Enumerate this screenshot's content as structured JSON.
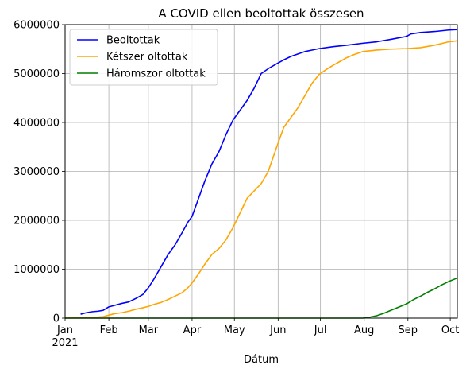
{
  "chart_data": {
    "type": "line",
    "title": "A COVID ellen beoltottak összesen",
    "xlabel": "Dátum",
    "ylabel": "",
    "xlim": [
      "2021-01-01",
      "2021-10-06"
    ],
    "ylim": [
      0,
      6000000
    ],
    "grid": true,
    "legend_position": "top-left",
    "x_tick_labels": [
      {
        "date": "2021-01-01",
        "label": "Jan",
        "sublabel": "2021"
      },
      {
        "date": "2021-02-01",
        "label": "Feb",
        "sublabel": ""
      },
      {
        "date": "2021-03-01",
        "label": "Mar",
        "sublabel": ""
      },
      {
        "date": "2021-04-01",
        "label": "Apr",
        "sublabel": ""
      },
      {
        "date": "2021-05-01",
        "label": "May",
        "sublabel": ""
      },
      {
        "date": "2021-06-01",
        "label": "Jun",
        "sublabel": ""
      },
      {
        "date": "2021-07-01",
        "label": "Jul",
        "sublabel": ""
      },
      {
        "date": "2021-08-01",
        "label": "Aug",
        "sublabel": ""
      },
      {
        "date": "2021-09-01",
        "label": "Sep",
        "sublabel": ""
      },
      {
        "date": "2021-10-01",
        "label": "Oct",
        "sublabel": ""
      }
    ],
    "y_ticks": [
      {
        "value": 0,
        "label": "0"
      },
      {
        "value": 1000000,
        "label": "1000000"
      },
      {
        "value": 2000000,
        "label": "2000000"
      },
      {
        "value": 3000000,
        "label": "3000000"
      },
      {
        "value": 4000000,
        "label": "4000000"
      },
      {
        "value": 5000000,
        "label": "5000000"
      },
      {
        "value": 6000000,
        "label": "6000000"
      }
    ],
    "series": [
      {
        "name": "Beoltottak",
        "color": "#0000ff",
        "points": [
          [
            "2021-01-12",
            80000
          ],
          [
            "2021-01-16",
            110000
          ],
          [
            "2021-01-20",
            130000
          ],
          [
            "2021-01-24",
            140000
          ],
          [
            "2021-01-28",
            160000
          ],
          [
            "2021-02-01",
            230000
          ],
          [
            "2021-02-05",
            260000
          ],
          [
            "2021-02-10",
            300000
          ],
          [
            "2021-02-15",
            330000
          ],
          [
            "2021-02-20",
            400000
          ],
          [
            "2021-02-25",
            480000
          ],
          [
            "2021-03-01",
            620000
          ],
          [
            "2021-03-05",
            800000
          ],
          [
            "2021-03-10",
            1050000
          ],
          [
            "2021-03-15",
            1300000
          ],
          [
            "2021-03-20",
            1500000
          ],
          [
            "2021-03-25",
            1750000
          ],
          [
            "2021-03-29",
            1960000
          ],
          [
            "2021-04-01",
            2080000
          ],
          [
            "2021-04-05",
            2400000
          ],
          [
            "2021-04-10",
            2800000
          ],
          [
            "2021-04-15",
            3150000
          ],
          [
            "2021-04-20",
            3400000
          ],
          [
            "2021-04-25",
            3750000
          ],
          [
            "2021-04-30",
            4050000
          ],
          [
            "2021-05-05",
            4250000
          ],
          [
            "2021-05-10",
            4450000
          ],
          [
            "2021-05-15",
            4700000
          ],
          [
            "2021-05-20",
            5000000
          ],
          [
            "2021-05-25",
            5100000
          ],
          [
            "2021-05-31",
            5200000
          ],
          [
            "2021-06-05",
            5280000
          ],
          [
            "2021-06-10",
            5350000
          ],
          [
            "2021-06-15",
            5400000
          ],
          [
            "2021-06-20",
            5450000
          ],
          [
            "2021-06-25",
            5480000
          ],
          [
            "2021-06-30",
            5510000
          ],
          [
            "2021-07-10",
            5550000
          ],
          [
            "2021-07-20",
            5580000
          ],
          [
            "2021-07-31",
            5620000
          ],
          [
            "2021-08-10",
            5650000
          ],
          [
            "2021-08-20",
            5700000
          ],
          [
            "2021-08-31",
            5760000
          ],
          [
            "2021-09-03",
            5810000
          ],
          [
            "2021-09-10",
            5840000
          ],
          [
            "2021-09-20",
            5860000
          ],
          [
            "2021-09-30",
            5890000
          ],
          [
            "2021-10-06",
            5900000
          ]
        ]
      },
      {
        "name": "Kétszer oltottak",
        "color": "#ffa500",
        "points": [
          [
            "2021-01-01",
            0
          ],
          [
            "2021-01-20",
            10000
          ],
          [
            "2021-01-28",
            30000
          ],
          [
            "2021-02-01",
            60000
          ],
          [
            "2021-02-05",
            90000
          ],
          [
            "2021-02-10",
            110000
          ],
          [
            "2021-02-15",
            140000
          ],
          [
            "2021-02-20",
            180000
          ],
          [
            "2021-02-25",
            210000
          ],
          [
            "2021-03-01",
            240000
          ],
          [
            "2021-03-05",
            280000
          ],
          [
            "2021-03-10",
            320000
          ],
          [
            "2021-03-15",
            380000
          ],
          [
            "2021-03-20",
            450000
          ],
          [
            "2021-03-25",
            520000
          ],
          [
            "2021-03-29",
            620000
          ],
          [
            "2021-04-01",
            720000
          ],
          [
            "2021-04-05",
            880000
          ],
          [
            "2021-04-10",
            1100000
          ],
          [
            "2021-04-15",
            1300000
          ],
          [
            "2021-04-20",
            1420000
          ],
          [
            "2021-04-25",
            1600000
          ],
          [
            "2021-04-30",
            1850000
          ],
          [
            "2021-05-05",
            2150000
          ],
          [
            "2021-05-10",
            2450000
          ],
          [
            "2021-05-15",
            2600000
          ],
          [
            "2021-05-20",
            2750000
          ],
          [
            "2021-05-25",
            3000000
          ],
          [
            "2021-05-31",
            3500000
          ],
          [
            "2021-06-05",
            3900000
          ],
          [
            "2021-06-10",
            4100000
          ],
          [
            "2021-06-15",
            4300000
          ],
          [
            "2021-06-20",
            4550000
          ],
          [
            "2021-06-25",
            4800000
          ],
          [
            "2021-06-30",
            4980000
          ],
          [
            "2021-07-05",
            5080000
          ],
          [
            "2021-07-10",
            5170000
          ],
          [
            "2021-07-15",
            5250000
          ],
          [
            "2021-07-20",
            5330000
          ],
          [
            "2021-07-25",
            5390000
          ],
          [
            "2021-07-31",
            5450000
          ],
          [
            "2021-08-10",
            5480000
          ],
          [
            "2021-08-20",
            5500000
          ],
          [
            "2021-08-31",
            5510000
          ],
          [
            "2021-09-10",
            5530000
          ],
          [
            "2021-09-20",
            5580000
          ],
          [
            "2021-09-30",
            5650000
          ],
          [
            "2021-10-06",
            5670000
          ]
        ]
      },
      {
        "name": "Háromszor oltottak",
        "color": "#008000",
        "points": [
          [
            "2021-01-01",
            0
          ],
          [
            "2021-07-31",
            0
          ],
          [
            "2021-08-05",
            20000
          ],
          [
            "2021-08-10",
            50000
          ],
          [
            "2021-08-15",
            100000
          ],
          [
            "2021-08-20",
            160000
          ],
          [
            "2021-08-25",
            220000
          ],
          [
            "2021-08-31",
            290000
          ],
          [
            "2021-09-05",
            380000
          ],
          [
            "2021-09-10",
            450000
          ],
          [
            "2021-09-15",
            530000
          ],
          [
            "2021-09-20",
            600000
          ],
          [
            "2021-09-25",
            680000
          ],
          [
            "2021-09-30",
            750000
          ],
          [
            "2021-10-06",
            820000
          ]
        ]
      }
    ]
  }
}
